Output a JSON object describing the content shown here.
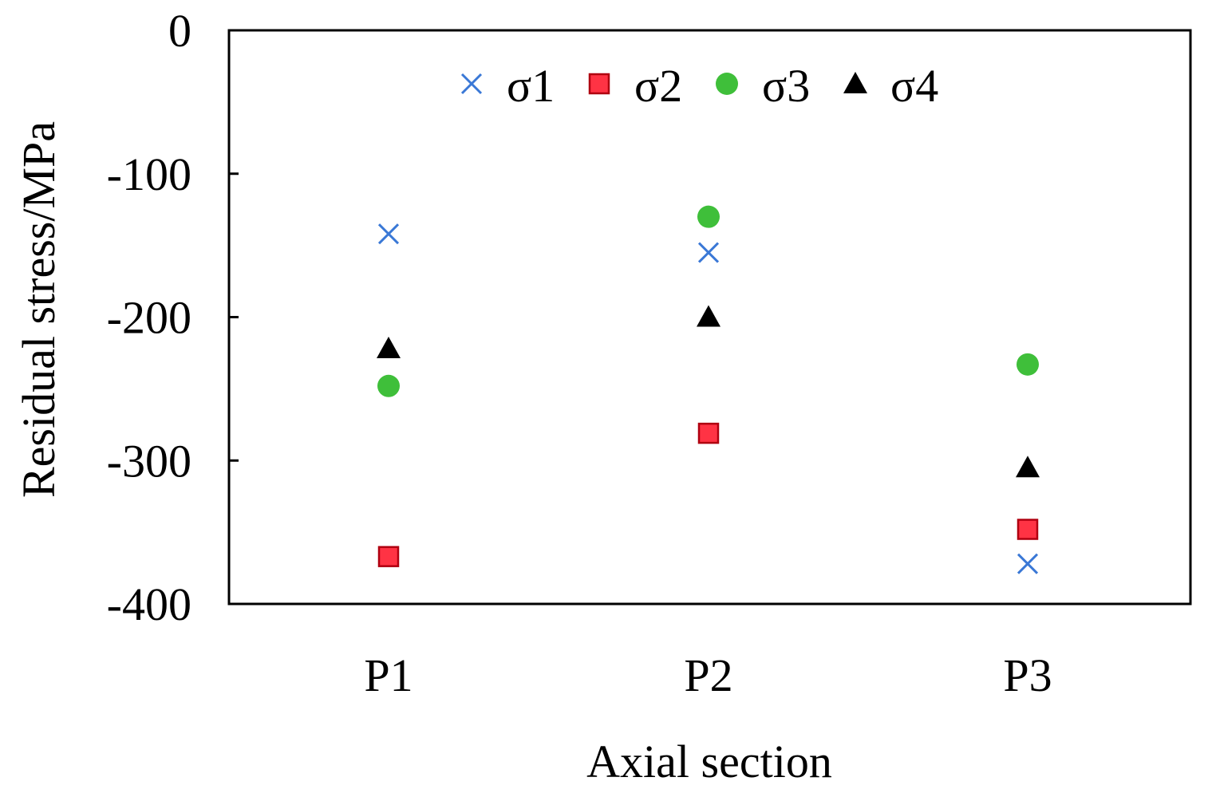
{
  "chart_data": {
    "type": "scatter",
    "title": "",
    "xlabel": "Axial section",
    "ylabel": "Residual stress/MPa",
    "categories": [
      "P1",
      "P2",
      "P3"
    ],
    "ylim": [
      -400,
      0
    ],
    "yticks": [
      0,
      -100,
      -200,
      -300,
      -400
    ],
    "ytick_labels": [
      "0",
      "-100",
      "-200",
      "-300",
      "-400"
    ],
    "grid": false,
    "legend_position": "top-center",
    "series": [
      {
        "name": "σ1",
        "marker": "cross",
        "color": "#3a78d6",
        "values": [
          -142,
          -155,
          -372
        ]
      },
      {
        "name": "σ2",
        "marker": "square",
        "color": "#ff3344",
        "values": [
          -367,
          -281,
          -348
        ]
      },
      {
        "name": "σ3",
        "marker": "circle",
        "color": "#3fbf3a",
        "values": [
          -248,
          -130,
          -233
        ]
      },
      {
        "name": "σ4",
        "marker": "triangle",
        "color": "#000000",
        "values": [
          -222,
          -200,
          -305
        ]
      }
    ]
  }
}
